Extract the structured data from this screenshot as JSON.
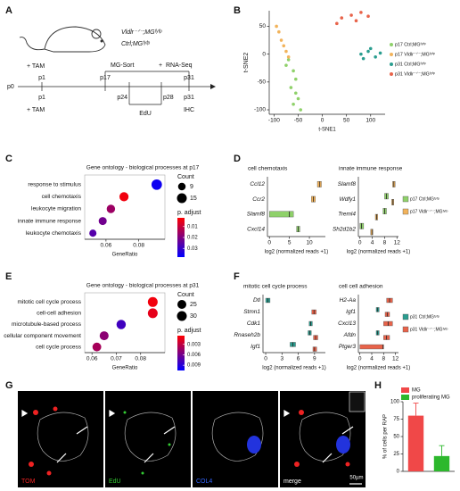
{
  "panel_labels": [
    "A",
    "B",
    "C",
    "D",
    "E",
    "F",
    "G",
    "H"
  ],
  "timeline": {
    "genotypes": [
      "Vldlr⁻ᐟ⁻;MGᶠʸᶠᵖ",
      "Ctrl;MGᶠʸᶠᵖ"
    ],
    "top": [
      "+ TAM",
      "p1",
      "p17",
      "MG-Sort",
      "+",
      "RNA-Seq",
      "p31"
    ],
    "start": "p0",
    "bottom": [
      "p1",
      "+ TAM",
      "p24",
      "p28",
      "EdU",
      "p31",
      "IHC"
    ]
  },
  "images": {
    "labels": [
      "TOM",
      "EdU",
      "COL4",
      "merge"
    ],
    "scale_bar": "50µm"
  },
  "chart_data": [
    {
      "type": "scatter",
      "xlabel": "t-SNE1",
      "ylabel": "t-SNE2",
      "xlim": [
        -110,
        130
      ],
      "xticks": [
        -100,
        -50,
        0,
        50,
        100
      ],
      "ylim": [
        -108,
        78
      ],
      "yticks": [
        -100,
        -50,
        0,
        50
      ],
      "series": [
        {
          "name": "p17 Ctrl;MGᶠʸᶠᵖ",
          "color": "#8fd16a",
          "x": [
            -60,
            -55,
            -65,
            -55,
            -50,
            -60,
            -45,
            -70,
            -75
          ],
          "values": [
            -30,
            -45,
            -60,
            -70,
            -80,
            -90,
            -100,
            -10,
            -20
          ]
        },
        {
          "name": "p17 Vldlr⁻ᐟ⁻;MGᶠʸᶠᵖ",
          "color": "#f2b35b",
          "x": [
            -90,
            -85,
            -80,
            -75,
            -95,
            -70
          ],
          "values": [
            40,
            25,
            15,
            5,
            50,
            -5
          ]
        },
        {
          "name": "p31 Ctrl;MGᶠʸᶠᵖ",
          "color": "#2a9d8f",
          "x": [
            80,
            95,
            110,
            120,
            85,
            100
          ],
          "values": [
            0,
            5,
            -5,
            2,
            -8,
            10
          ]
        },
        {
          "name": "p31 Vldlr⁻ᐟ⁻;MGᶠʸᶠᵖ",
          "color": "#e8634a",
          "x": [
            40,
            60,
            80,
            95,
            30,
            70
          ],
          "values": [
            65,
            70,
            75,
            68,
            55,
            60
          ]
        }
      ]
    },
    {
      "type": "dot",
      "title": "Gene ontology - biological processes at p17",
      "xlabel": "GeneRatio",
      "categories": [
        "response to stimulus",
        "cell chemotaxis",
        "leukocyte migration",
        "innate immune response",
        "leukocyte chemotaxis"
      ],
      "values": [
        0.091,
        0.071,
        0.063,
        0.058,
        0.052
      ],
      "sizes": [
        17,
        13,
        11,
        10,
        8
      ],
      "padj": [
        0.036,
        0.004,
        0.016,
        0.022,
        0.026
      ],
      "xlim": [
        0.047,
        0.096
      ],
      "xticks": [
        0.06,
        0.08
      ],
      "size_title": "Count",
      "size_ticks": [
        9,
        15
      ],
      "color_title": "p. adjust",
      "color_ticks": [
        0.01,
        0.02,
        0.03
      ],
      "color_lim": [
        0.002,
        0.038
      ],
      "colors": [
        "#ff0000",
        "#0000ff"
      ]
    },
    {
      "type": "box",
      "title": "cell chemotaxis",
      "xlabel": "log2 (normalized reads +1)",
      "categories": [
        "Ccl12",
        "Ccr2",
        "Slamf8",
        "Cxcl14"
      ],
      "xlim": [
        -0.5,
        14
      ],
      "xticks": [
        0,
        5,
        10
      ],
      "series": [
        {
          "color": "#8fd16a",
          "q1": [
            null,
            null,
            0,
            6.8
          ],
          "median": [
            null,
            null,
            5,
            7.2
          ],
          "q3": [
            null,
            null,
            6,
            7.6
          ]
        },
        {
          "color": "#f2b35b",
          "q1": [
            12,
            10.5,
            null,
            null
          ],
          "median": [
            12.6,
            11,
            null,
            null
          ],
          "q3": [
            13,
            11.5,
            null,
            null
          ]
        }
      ]
    },
    {
      "type": "box",
      "title": "innate immune response",
      "xlabel": "log2 (normalized reads +1)",
      "categories": [
        "Slamf8",
        "Wdfy1",
        "Treml4",
        "Sh2d1b2"
      ],
      "xlim": [
        -0.5,
        12.5
      ],
      "xticks": [
        0,
        4,
        8,
        12
      ],
      "series": [
        {
          "name": "p17 Ctrl;MGᶠʸᶠᵖ",
          "color": "#8fd16a",
          "q1": [
            null,
            8,
            7.5,
            0
          ],
          "median": [
            null,
            8.6,
            8,
            0.5
          ],
          "q3": [
            null,
            9.2,
            8.6,
            1.2
          ]
        },
        {
          "name": "p17 Vldlr⁻ᐟ⁻;MGᶠʸᶠᵖ",
          "color": "#f2b35b",
          "q1": [
            10.6,
            10.3,
            5,
            3.5
          ],
          "median": [
            11,
            10.7,
            5.4,
            3.9
          ],
          "q3": [
            11.4,
            11,
            5.8,
            4.2
          ]
        }
      ]
    },
    {
      "type": "dot",
      "title": "Gene ontology - biological processes at p31",
      "xlabel": "GeneRatio",
      "categories": [
        "mitotic cell cycle process",
        "cell-cell adhesion",
        "microtubule-based process",
        "cellular component movement",
        "cell cycle process"
      ],
      "values": [
        0.085,
        0.085,
        0.072,
        0.065,
        0.062
      ],
      "sizes": [
        30,
        30,
        27,
        25,
        24
      ],
      "padj": [
        0.001,
        0.0015,
        0.008,
        0.005,
        0.004
      ],
      "xlim": [
        0.057,
        0.09
      ],
      "xticks": [
        0.06,
        0.07,
        0.08
      ],
      "size_title": "Count",
      "size_ticks": [
        25,
        30
      ],
      "color_title": "p. adjust",
      "color_ticks": [
        0.003,
        0.006,
        0.009
      ],
      "color_lim": [
        0.0005,
        0.0105
      ],
      "colors": [
        "#ff0000",
        "#0000ff"
      ]
    },
    {
      "type": "box",
      "title": "mitotic cell cycle process",
      "xlabel": "log2 (normalized reads +1)",
      "categories": [
        "Dtl",
        "Stmn1",
        "Cdk1",
        "Rnaseh2b",
        "Igf1"
      ],
      "xlim": [
        -0.5,
        11
      ],
      "xticks": [
        0,
        3,
        6,
        9
      ],
      "series": [
        {
          "color": "#2a9d8f",
          "q1": [
            0,
            null,
            8,
            7.8,
            4.5
          ],
          "median": [
            0.4,
            null,
            8.3,
            8.1,
            5
          ],
          "q3": [
            0.8,
            null,
            8.6,
            8.4,
            5.5
          ]
        },
        {
          "color": "#e8634a",
          "q1": [
            null,
            8.5,
            null,
            8.8,
            8.7
          ],
          "median": [
            null,
            8.9,
            null,
            9.2,
            9
          ],
          "q3": [
            null,
            9.3,
            null,
            9.6,
            9.4
          ]
        }
      ]
    },
    {
      "type": "box",
      "title": "cell cell adhesion",
      "xlabel": "log2 (normalized reads +1)",
      "categories": [
        "H2-Aa",
        "Igf1",
        "Cxcl13",
        "Afdn",
        "Ptger3"
      ],
      "xlim": [
        -0.5,
        13
      ],
      "xticks": [
        0,
        4,
        8,
        12
      ],
      "series": [
        {
          "name": "p31 Ctrl;MGᶠʸᶠᵖ",
          "color": "#2a9d8f",
          "q1": [
            null,
            5.5,
            null,
            5.5,
            null
          ],
          "median": [
            null,
            6,
            null,
            6,
            null
          ],
          "q3": [
            null,
            6.5,
            null,
            6.5,
            null
          ]
        },
        {
          "name": "p31 Vldlr⁻ᐟ⁻;MGᶠʸᶠᵖ",
          "color": "#e8634a",
          "q1": [
            9,
            8.5,
            8,
            8,
            0
          ],
          "median": [
            10,
            9.2,
            9.5,
            9,
            7.8
          ],
          "q3": [
            11,
            10,
            11,
            10,
            8
          ]
        }
      ]
    },
    {
      "type": "bar",
      "ylabel": "% of cells per RAP",
      "categories": [
        "MG",
        "proliferating MG"
      ],
      "values": [
        80,
        22
      ],
      "errors": [
        18,
        15
      ],
      "colors": [
        "#f04848",
        "#2db82d"
      ],
      "ylim": [
        0,
        100
      ],
      "yticks": [
        0,
        25,
        50,
        75,
        100
      ]
    }
  ]
}
